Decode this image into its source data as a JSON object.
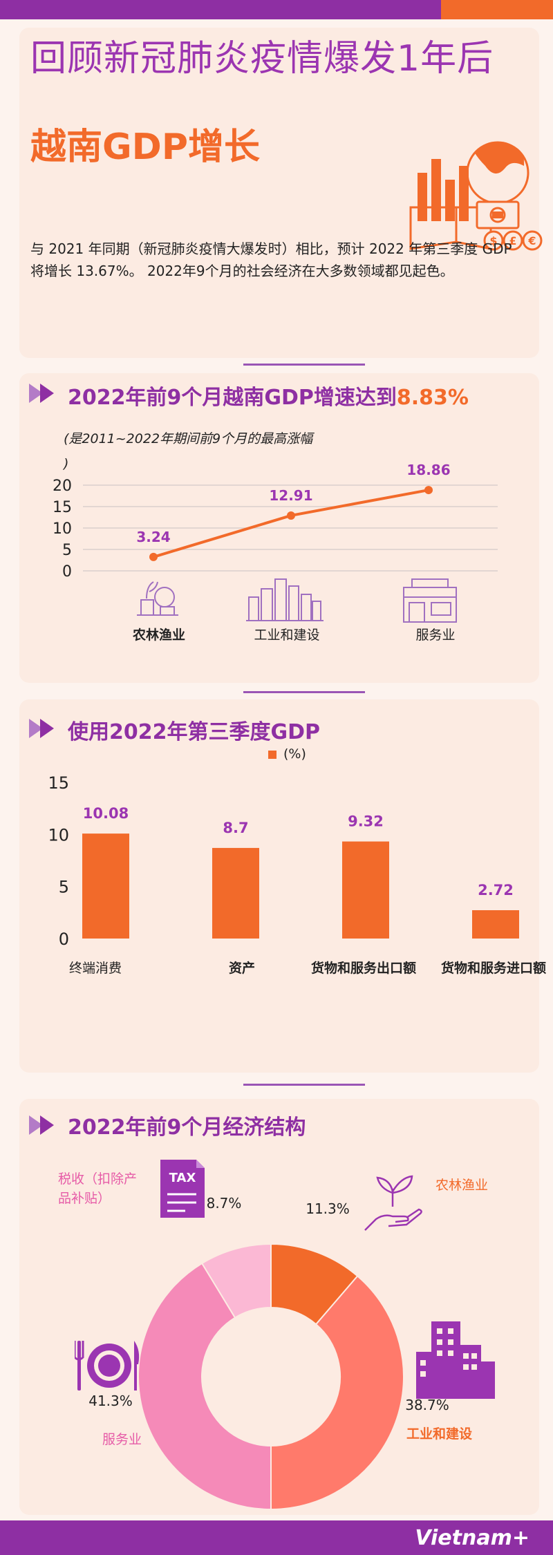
{
  "header": {
    "title_line1": "回顾新冠肺炎疫情爆发1年后",
    "title_line2": "越南GDP增长",
    "intro": "与 2021 年同期（新冠肺炎疫情大爆发时）相比，预计 2022 年第三季度 GDP 将增长 13.67%。 2022年9个月的社会经济在大多数领域都见起色。"
  },
  "section1": {
    "title_main": "2022年前9个月越南GDP增速达到",
    "title_highlight": "8.83%",
    "subtitle": "(是2011~2022年期间前9个月的最高涨幅",
    "subtitle_cont": ")"
  },
  "section2": {
    "title": "使用2022年第三季度GDP",
    "legend": "(%)"
  },
  "section3": {
    "title": "2022年前9个月经济结构",
    "label_tax": "税收（扣除产品补贴）",
    "label_tax_line1": "税收（扣除产",
    "label_tax_line2": "品补贴）",
    "label_agri": "农林渔业",
    "label_industry": "工业和建设",
    "label_service": "服务业",
    "tax_badge": "TAX"
  },
  "footer": {
    "brand": "Vietnam+"
  },
  "colors": {
    "purple": "#8e2fa3",
    "orange": "#f26a2a",
    "salmon": "#ff7a6b",
    "pink": "#f58ab8",
    "light_pink": "#fbb8d4"
  },
  "chart_data": [
    {
      "type": "line",
      "categories": [
        "农林渔业",
        "工业和建设",
        "服务业"
      ],
      "values": [
        3.24,
        12.91,
        18.86
      ],
      "ylim": [
        0,
        20
      ],
      "yticks": [
        0,
        5,
        10,
        15,
        20
      ],
      "data_labels": [
        "3.24",
        "12.91",
        "18.86"
      ],
      "grid": true
    },
    {
      "type": "bar",
      "categories": [
        "终端消费",
        "资产",
        "货物和服务出口额",
        "货物和服务进口额"
      ],
      "values": [
        10.08,
        8.7,
        9.32,
        2.72
      ],
      "data_labels": [
        "10.08",
        "8.7",
        "9.32",
        "2.72"
      ],
      "ylim": [
        0,
        15
      ],
      "yticks": [
        0,
        5,
        10,
        15
      ],
      "legend": "(%)",
      "legend_position": "top"
    },
    {
      "type": "pie",
      "labels": [
        "农林渔业",
        "工业和建设",
        "服务业",
        "税收（扣除产品补贴）"
      ],
      "values": [
        11.3,
        38.7,
        41.3,
        8.7
      ],
      "value_labels": [
        "11.3%",
        "38.7%",
        "41.3%",
        "8.7%"
      ],
      "colors": [
        "#f26a2a",
        "#ff7a6b",
        "#f58ab8",
        "#fbb8d4"
      ],
      "donut": true
    }
  ]
}
